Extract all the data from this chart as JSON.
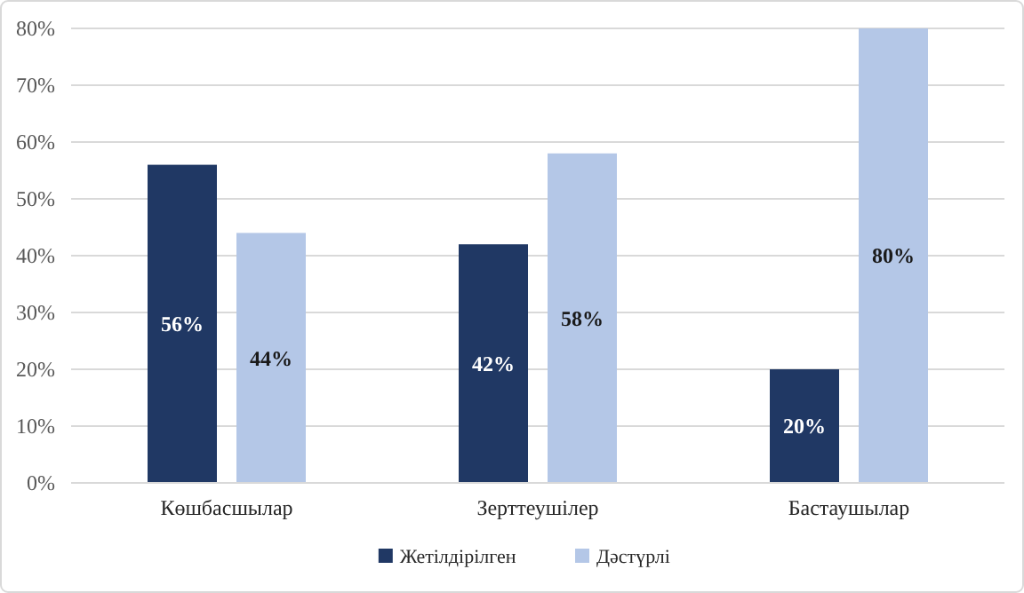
{
  "chart_data": {
    "type": "bar",
    "categories": [
      "Көшбасшылар",
      "Зерттеушілер",
      "Бастаушылар"
    ],
    "series": [
      {
        "name": "Жетілдірілген",
        "color": "#203864",
        "values": [
          56,
          42,
          20
        ],
        "value_labels": [
          "56%",
          "42%",
          "20%"
        ]
      },
      {
        "name": "Дәстүрлі",
        "color": "#b4c7e7",
        "values": [
          44,
          58,
          80
        ],
        "value_labels": [
          "44%",
          "58%",
          "80%"
        ]
      }
    ],
    "ylim": [
      0,
      80
    ],
    "yticks": [
      {
        "value": 0,
        "label": "0%"
      },
      {
        "value": 10,
        "label": "10%"
      },
      {
        "value": 20,
        "label": "20%"
      },
      {
        "value": 30,
        "label": "30%"
      },
      {
        "value": 40,
        "label": "40%"
      },
      {
        "value": 50,
        "label": "50%"
      },
      {
        "value": 60,
        "label": "60%"
      },
      {
        "value": 70,
        "label": "70%"
      },
      {
        "value": 80,
        "label": "80%"
      }
    ],
    "grid": "y",
    "legend": "bottom"
  }
}
